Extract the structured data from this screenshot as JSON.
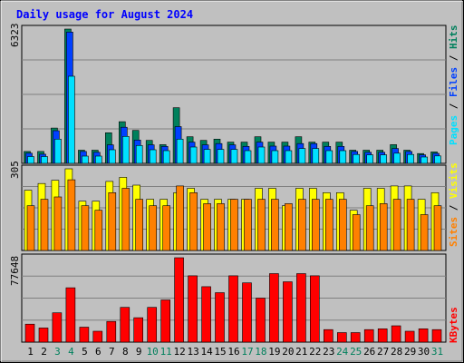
{
  "title": "Daily usage for August 2024",
  "colors": {
    "background": "#c0c0c0",
    "title": "#0000ff",
    "hits": "#00805c",
    "files": "#0040ff",
    "pages": "#00e0ff",
    "visits": "#ffff00",
    "sites": "#ff8000",
    "kbytes": "#ff0000",
    "weekday": "#000000",
    "weekend": "#00805c"
  },
  "chart_data": [
    {
      "type": "bar",
      "panel": "hits-files-pages",
      "ymax_label": "6323",
      "ymax": 6323,
      "legend": [
        "Pages",
        "Files",
        "Hits"
      ],
      "series": [
        {
          "name": "Hits",
          "values": [
            560,
            560,
            1660,
            6323,
            620,
            620,
            1440,
            1960,
            1550,
            1080,
            880,
            2620,
            1250,
            1080,
            1140,
            1000,
            1000,
            1250,
            1000,
            1000,
            1250,
            1000,
            1000,
            1000,
            620,
            620,
            620,
            880,
            620,
            460,
            540
          ]
        },
        {
          "name": "Files",
          "values": [
            480,
            430,
            1540,
            6180,
            560,
            520,
            870,
            1700,
            1100,
            870,
            800,
            1730,
            1000,
            870,
            930,
            870,
            800,
            1000,
            810,
            810,
            930,
            930,
            800,
            800,
            560,
            520,
            520,
            700,
            560,
            400,
            470
          ]
        },
        {
          "name": "Pages",
          "values": [
            320,
            320,
            1140,
            4100,
            340,
            340,
            640,
            1270,
            840,
            640,
            600,
            1140,
            770,
            660,
            660,
            660,
            600,
            770,
            600,
            600,
            700,
            700,
            600,
            600,
            420,
            400,
            400,
            480,
            420,
            300,
            350
          ]
        }
      ]
    },
    {
      "type": "bar",
      "panel": "visits-sites",
      "ymax_label": "305",
      "ymax": 305,
      "legend": [
        "Sites",
        "Visits"
      ],
      "series": [
        {
          "name": "Visits",
          "values": [
            225,
            250,
            262,
            305,
            184,
            184,
            258,
            273,
            244,
            191,
            191,
            216,
            232,
            191,
            191,
            191,
            191,
            232,
            232,
            167,
            232,
            232,
            216,
            216,
            150,
            232,
            232,
            241,
            241,
            191,
            216
          ]
        },
        {
          "name": "Sites",
          "values": [
            167,
            191,
            200,
            264,
            167,
            150,
            216,
            232,
            191,
            167,
            167,
            241,
            216,
            175,
            175,
            191,
            191,
            191,
            191,
            175,
            191,
            191,
            191,
            191,
            134,
            167,
            175,
            191,
            191,
            134,
            167
          ]
        }
      ]
    },
    {
      "type": "bar",
      "panel": "kbytes",
      "ymax_label": "77648",
      "ymax": 77648,
      "legend": [
        "KBytes"
      ],
      "series": [
        {
          "name": "KBytes",
          "values": [
            16500,
            13000,
            27000,
            50000,
            13800,
            10000,
            19000,
            32000,
            22500,
            32000,
            38800,
            77648,
            61000,
            51000,
            45500,
            61000,
            54500,
            40500,
            63000,
            55500,
            63000,
            61000,
            11500,
            8800,
            8800,
            11500,
            12300,
            15000,
            10000,
            12300,
            11500
          ]
        }
      ]
    }
  ],
  "days": [
    "1",
    "2",
    "3",
    "4",
    "5",
    "6",
    "7",
    "8",
    "9",
    "10",
    "11",
    "12",
    "13",
    "14",
    "15",
    "16",
    "17",
    "18",
    "19",
    "20",
    "21",
    "22",
    "23",
    "24",
    "25",
    "26",
    "27",
    "28",
    "29",
    "30",
    "31"
  ],
  "weekend_days": [
    3,
    4,
    10,
    11,
    17,
    18,
    24,
    25,
    31
  ]
}
